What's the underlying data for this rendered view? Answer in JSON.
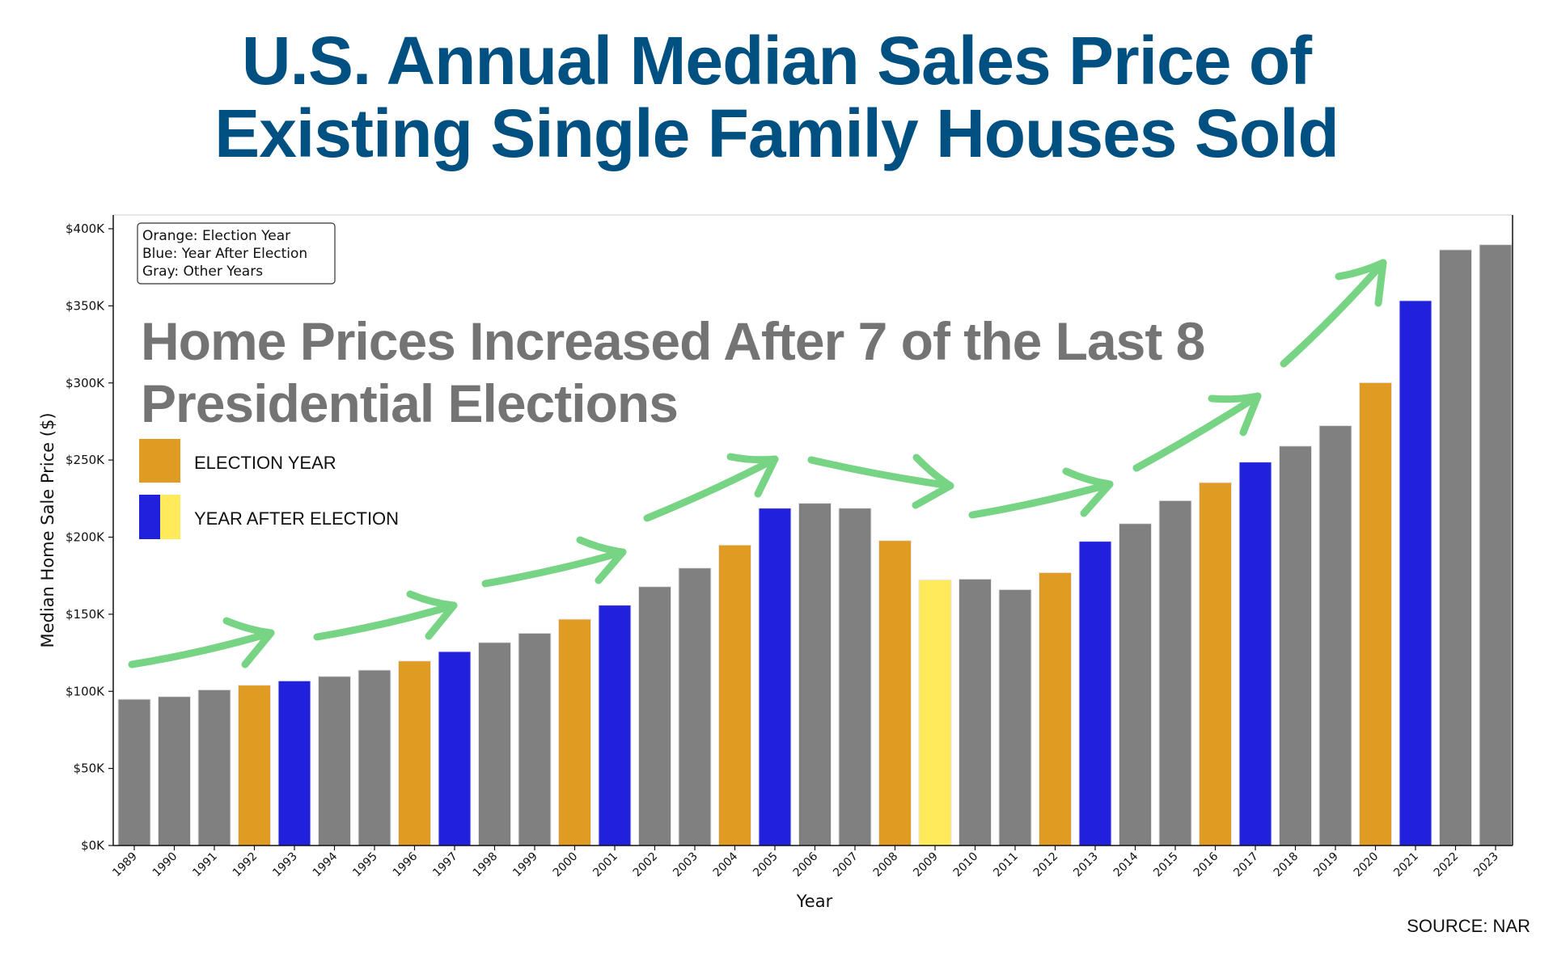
{
  "title": {
    "line1": "U.S. Annual Median Sales Price of",
    "line2": "Existing Single Family Houses Sold"
  },
  "source": "SOURCE: NAR",
  "colors": {
    "title": "#005182",
    "election": "#df9b22",
    "after_election": "#2020dd",
    "after_election_highlight": "#ffea5c",
    "other": "#808080",
    "arrow": "#76d484",
    "headline": "#747474"
  },
  "chart_data": {
    "type": "bar",
    "title": "U.S. Annual Median Sales Price of Existing Single Family Houses Sold",
    "subtitle": "Home Prices Increased After 7 of the Last 8 Presidential Elections",
    "xlabel": "Year",
    "ylabel": "Median Home Sale Price ($)",
    "ylim": [
      0,
      407000
    ],
    "yticks": [
      0,
      50000,
      100000,
      150000,
      200000,
      250000,
      300000,
      350000,
      400000
    ],
    "ytick_labels": [
      "$0K",
      "$50K",
      "$100K",
      "$150K",
      "$200K",
      "$250K",
      "$300K",
      "$350K",
      "$400K"
    ],
    "grid": false,
    "categories": [
      "1989",
      "1990",
      "1991",
      "1992",
      "1993",
      "1994",
      "1995",
      "1996",
      "1997",
      "1998",
      "1999",
      "2000",
      "2001",
      "2002",
      "2003",
      "2004",
      "2005",
      "2006",
      "2007",
      "2008",
      "2009",
      "2010",
      "2011",
      "2012",
      "2013",
      "2014",
      "2015",
      "2016",
      "2017",
      "2018",
      "2019",
      "2020",
      "2021",
      "2022",
      "2023"
    ],
    "values": [
      94900,
      96600,
      101000,
      104000,
      106800,
      109700,
      113800,
      119700,
      125800,
      131700,
      137700,
      146800,
      155900,
      167900,
      180000,
      194900,
      218800,
      222000,
      218800,
      197800,
      172300,
      172800,
      166000,
      177000,
      197300,
      208800,
      223700,
      235400,
      248700,
      259100,
      272300,
      300200,
      353400,
      386400,
      389700
    ],
    "bar_types": [
      "other",
      "other",
      "other",
      "election",
      "after",
      "other",
      "other",
      "election",
      "after",
      "other",
      "other",
      "election",
      "after",
      "other",
      "other",
      "election",
      "after",
      "other",
      "other",
      "election",
      "after_highlight",
      "other",
      "other",
      "election",
      "after",
      "other",
      "other",
      "election",
      "after",
      "other",
      "other",
      "election",
      "after",
      "other",
      "other"
    ],
    "key_box": [
      "Orange: Election Year",
      "Blue: Year After Election",
      "Gray: Other Years"
    ],
    "key_box_placement": "top-left",
    "legend": [
      {
        "label": "ELECTION YEAR",
        "swatch": [
          "election"
        ]
      },
      {
        "label": "YEAR AFTER ELECTION",
        "swatch": [
          "after",
          "after_highlight"
        ]
      }
    ],
    "annotations": {
      "headline_lines": [
        "Home Prices Increased After 7 of the Last 8",
        "Presidential Elections"
      ],
      "arrows": [
        {
          "from_year": "1989",
          "to_year": "1993",
          "direction": "up"
        },
        {
          "from_year": "1994",
          "to_year": "1997",
          "direction": "up"
        },
        {
          "from_year": "1998",
          "to_year": "2001",
          "direction": "up"
        },
        {
          "from_year": "2002",
          "to_year": "2005",
          "direction": "up"
        },
        {
          "from_year": "2006",
          "to_year": "2009",
          "direction": "down"
        },
        {
          "from_year": "2010",
          "to_year": "2013",
          "direction": "up"
        },
        {
          "from_year": "2014",
          "to_year": "2017",
          "direction": "up"
        },
        {
          "from_year": "2018",
          "to_year": "2021",
          "direction": "up"
        }
      ]
    }
  }
}
